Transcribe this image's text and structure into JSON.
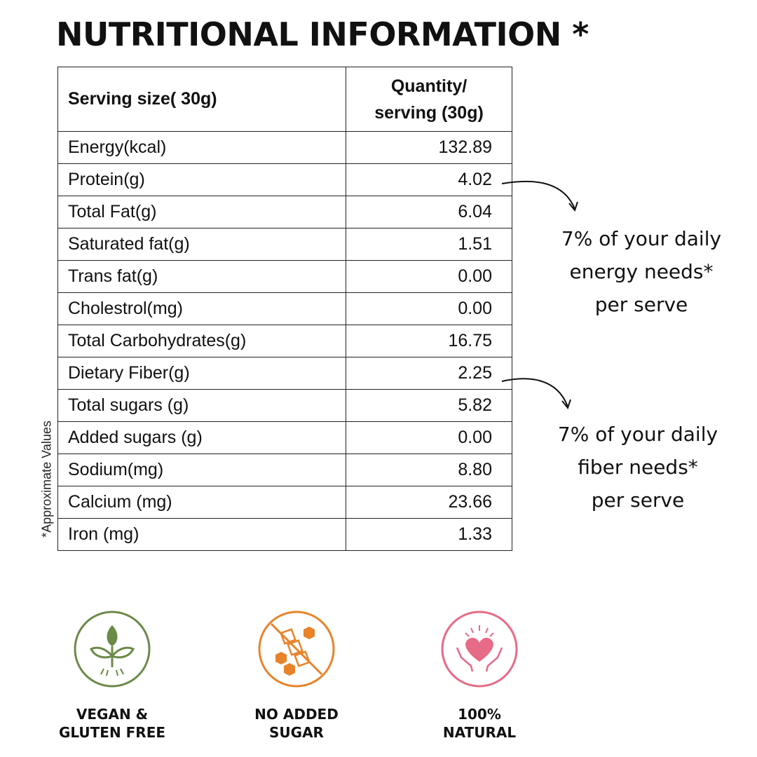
{
  "title": "NUTRITIONAL INFORMATION *",
  "table": {
    "header": {
      "col1": "Serving size( 30g)",
      "col2_line1": "Quantity/",
      "col2_line2": "serving (30g)"
    },
    "rows": [
      {
        "name": "Energy(kcal)",
        "value": "132.89"
      },
      {
        "name": "Protein(g)",
        "value": "4.02"
      },
      {
        "name": "Total Fat(g)",
        "value": "6.04"
      },
      {
        "name": "Saturated fat(g)",
        "value": "1.51"
      },
      {
        "name": "Trans fat(g)",
        "value": "0.00"
      },
      {
        "name": "Cholestrol(mg)",
        "value": "0.00"
      },
      {
        "name": "Total Carbohydrates(g)",
        "value": "16.75"
      },
      {
        "name": "Dietary  Fiber(g)",
        "value": "2.25"
      },
      {
        "name": "Total sugars (g)",
        "value": "5.82"
      },
      {
        "name": "Added sugars (g)",
        "value": "0.00"
      },
      {
        "name": "Sodium(mg)",
        "value": "8.80"
      },
      {
        "name": "Calcium (mg)",
        "value": "23.66"
      },
      {
        "name": "Iron (mg)",
        "value": "1.33"
      }
    ]
  },
  "side_note": "*Approximate Values",
  "callouts": {
    "energy": {
      "line1": "7% of your daily",
      "line2": "energy needs*",
      "line3": "per serve"
    },
    "fiber": {
      "line1": "7% of your daily",
      "line2": "fiber needs*",
      "line3": "per serve"
    }
  },
  "badges": [
    {
      "icon": "vegan-leaf-icon",
      "color": "#6b8a48",
      "line1": "VEGAN &",
      "line2": "GLUTEN FREE"
    },
    {
      "icon": "no-sugar-icon",
      "color": "#e8832a",
      "line1": "NO ADDED",
      "line2": "SUGAR"
    },
    {
      "icon": "heart-hands-icon",
      "color": "#e76a86",
      "line1": "100%",
      "line2": "NATURAL"
    }
  ]
}
